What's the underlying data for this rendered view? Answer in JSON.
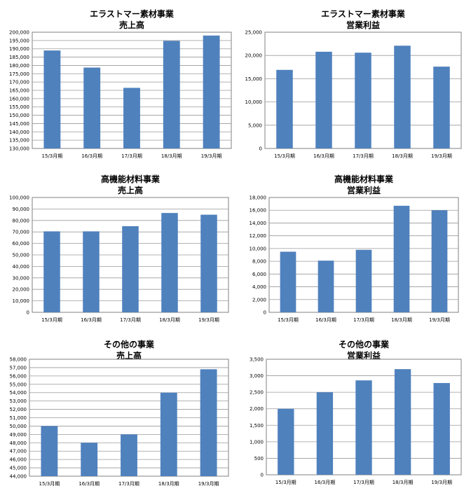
{
  "chart_data": [
    {
      "type": "bar",
      "title": "エラストマー素材事業",
      "subtitle": "売上高",
      "categories": [
        "15/3月期",
        "16/3月期",
        "17/3月期",
        "18/3月期",
        "19/3月期"
      ],
      "values": [
        189000,
        178700,
        166500,
        194800,
        198000
      ],
      "ylim": [
        130000,
        200000
      ],
      "yticks": [
        "130,000",
        "135,000",
        "140,000",
        "145,000",
        "150,000",
        "155,000",
        "160,000",
        "165,000",
        "170,000",
        "175,000",
        "180,000",
        "185,000",
        "190,000",
        "195,000",
        "200,000"
      ],
      "grid": true,
      "color": "#4f81bd"
    },
    {
      "type": "bar",
      "title": "エラストマー素材事業",
      "subtitle": "営業利益",
      "categories": [
        "15/3月期",
        "16/3月期",
        "17/3月期",
        "18/3月期",
        "19/3月期"
      ],
      "values": [
        16900,
        20800,
        20600,
        22100,
        17600
      ],
      "ylim": [
        0,
        25000
      ],
      "yticks": [
        "0",
        "5,000",
        "10,000",
        "15,000",
        "20,000",
        "25,000"
      ],
      "grid": true,
      "color": "#4f81bd"
    },
    {
      "type": "bar",
      "title": "高機能材料事業",
      "subtitle": "売上高",
      "categories": [
        "15/3月期",
        "16/3月期",
        "17/3月期",
        "18/3月期",
        "19/3月期"
      ],
      "values": [
        70500,
        70500,
        75000,
        86500,
        85000
      ],
      "ylim": [
        0,
        100000
      ],
      "yticks": [
        "0",
        "10,000",
        "20,000",
        "30,000",
        "40,000",
        "50,000",
        "60,000",
        "70,000",
        "80,000",
        "90,000",
        "100,000"
      ],
      "grid": true,
      "color": "#4f81bd"
    },
    {
      "type": "bar",
      "title": "高機能材料事業",
      "subtitle": "営業利益",
      "categories": [
        "15/3月期",
        "16/3月期",
        "17/3月期",
        "18/3月期",
        "19/3月期"
      ],
      "values": [
        9500,
        8100,
        9800,
        16700,
        16000
      ],
      "ylim": [
        0,
        18000
      ],
      "yticks": [
        "0",
        "2,000",
        "4,000",
        "6,000",
        "8,000",
        "10,000",
        "12,000",
        "14,000",
        "16,000",
        "18,000"
      ],
      "grid": true,
      "color": "#4f81bd"
    },
    {
      "type": "bar",
      "title": "その他の事業",
      "subtitle": "売上高",
      "categories": [
        "15/3月期",
        "16/3月期",
        "17/3月期",
        "18/3月期",
        "19/3月期"
      ],
      "values": [
        50000,
        48000,
        49000,
        54000,
        56800
      ],
      "ylim": [
        44000,
        58000
      ],
      "yticks": [
        "44,000",
        "45,000",
        "46,000",
        "47,000",
        "48,000",
        "49,000",
        "50,000",
        "51,000",
        "52,000",
        "53,000",
        "54,000",
        "55,000",
        "56,000",
        "57,000",
        "58,000"
      ],
      "grid": true,
      "color": "#4f81bd"
    },
    {
      "type": "bar",
      "title": "その他の事業",
      "subtitle": "営業利益",
      "categories": [
        "15/3月期",
        "16/3月期",
        "17/3月期",
        "18/3月期",
        "19/3月期"
      ],
      "values": [
        2000,
        2500,
        2860,
        3200,
        2780
      ],
      "ylim": [
        0,
        3500
      ],
      "yticks": [
        "0",
        "500",
        "1,000",
        "1,500",
        "2,000",
        "2,500",
        "3,000",
        "3,500"
      ],
      "grid": true,
      "color": "#4f81bd"
    }
  ]
}
